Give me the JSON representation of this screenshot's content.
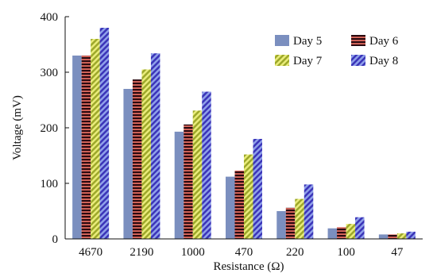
{
  "chart_data": {
    "type": "bar",
    "xlabel": "Resistance (Ω)",
    "ylabel": "Voltage (mV)",
    "categories": [
      "4670",
      "2190",
      "1000",
      "470",
      "220",
      "100",
      "47"
    ],
    "ylim": [
      0,
      400
    ],
    "yticks": [
      "0",
      "100",
      "200",
      "300",
      "400"
    ],
    "grid": false,
    "legend_position": "top-right",
    "series": [
      {
        "name": "Day 5",
        "color": "#7b8fbf",
        "pattern": "solid",
        "values": [
          330,
          270,
          193,
          112,
          50,
          19,
          8
        ]
      },
      {
        "name": "Day 6",
        "color": "#8c1a2b",
        "pattern": "horizontal-stripes",
        "values": [
          330,
          287,
          206,
          123,
          56,
          21,
          8
        ]
      },
      {
        "name": "Day 7",
        "color": "#c8cc3a",
        "pattern": "diagonal-stripes",
        "values": [
          360,
          305,
          231,
          152,
          72,
          27,
          10
        ]
      },
      {
        "name": "Day 8",
        "color": "#5a5fd0",
        "pattern": "diagonal-stripes",
        "values": [
          380,
          334,
          265,
          180,
          98,
          39,
          13
        ]
      }
    ]
  }
}
